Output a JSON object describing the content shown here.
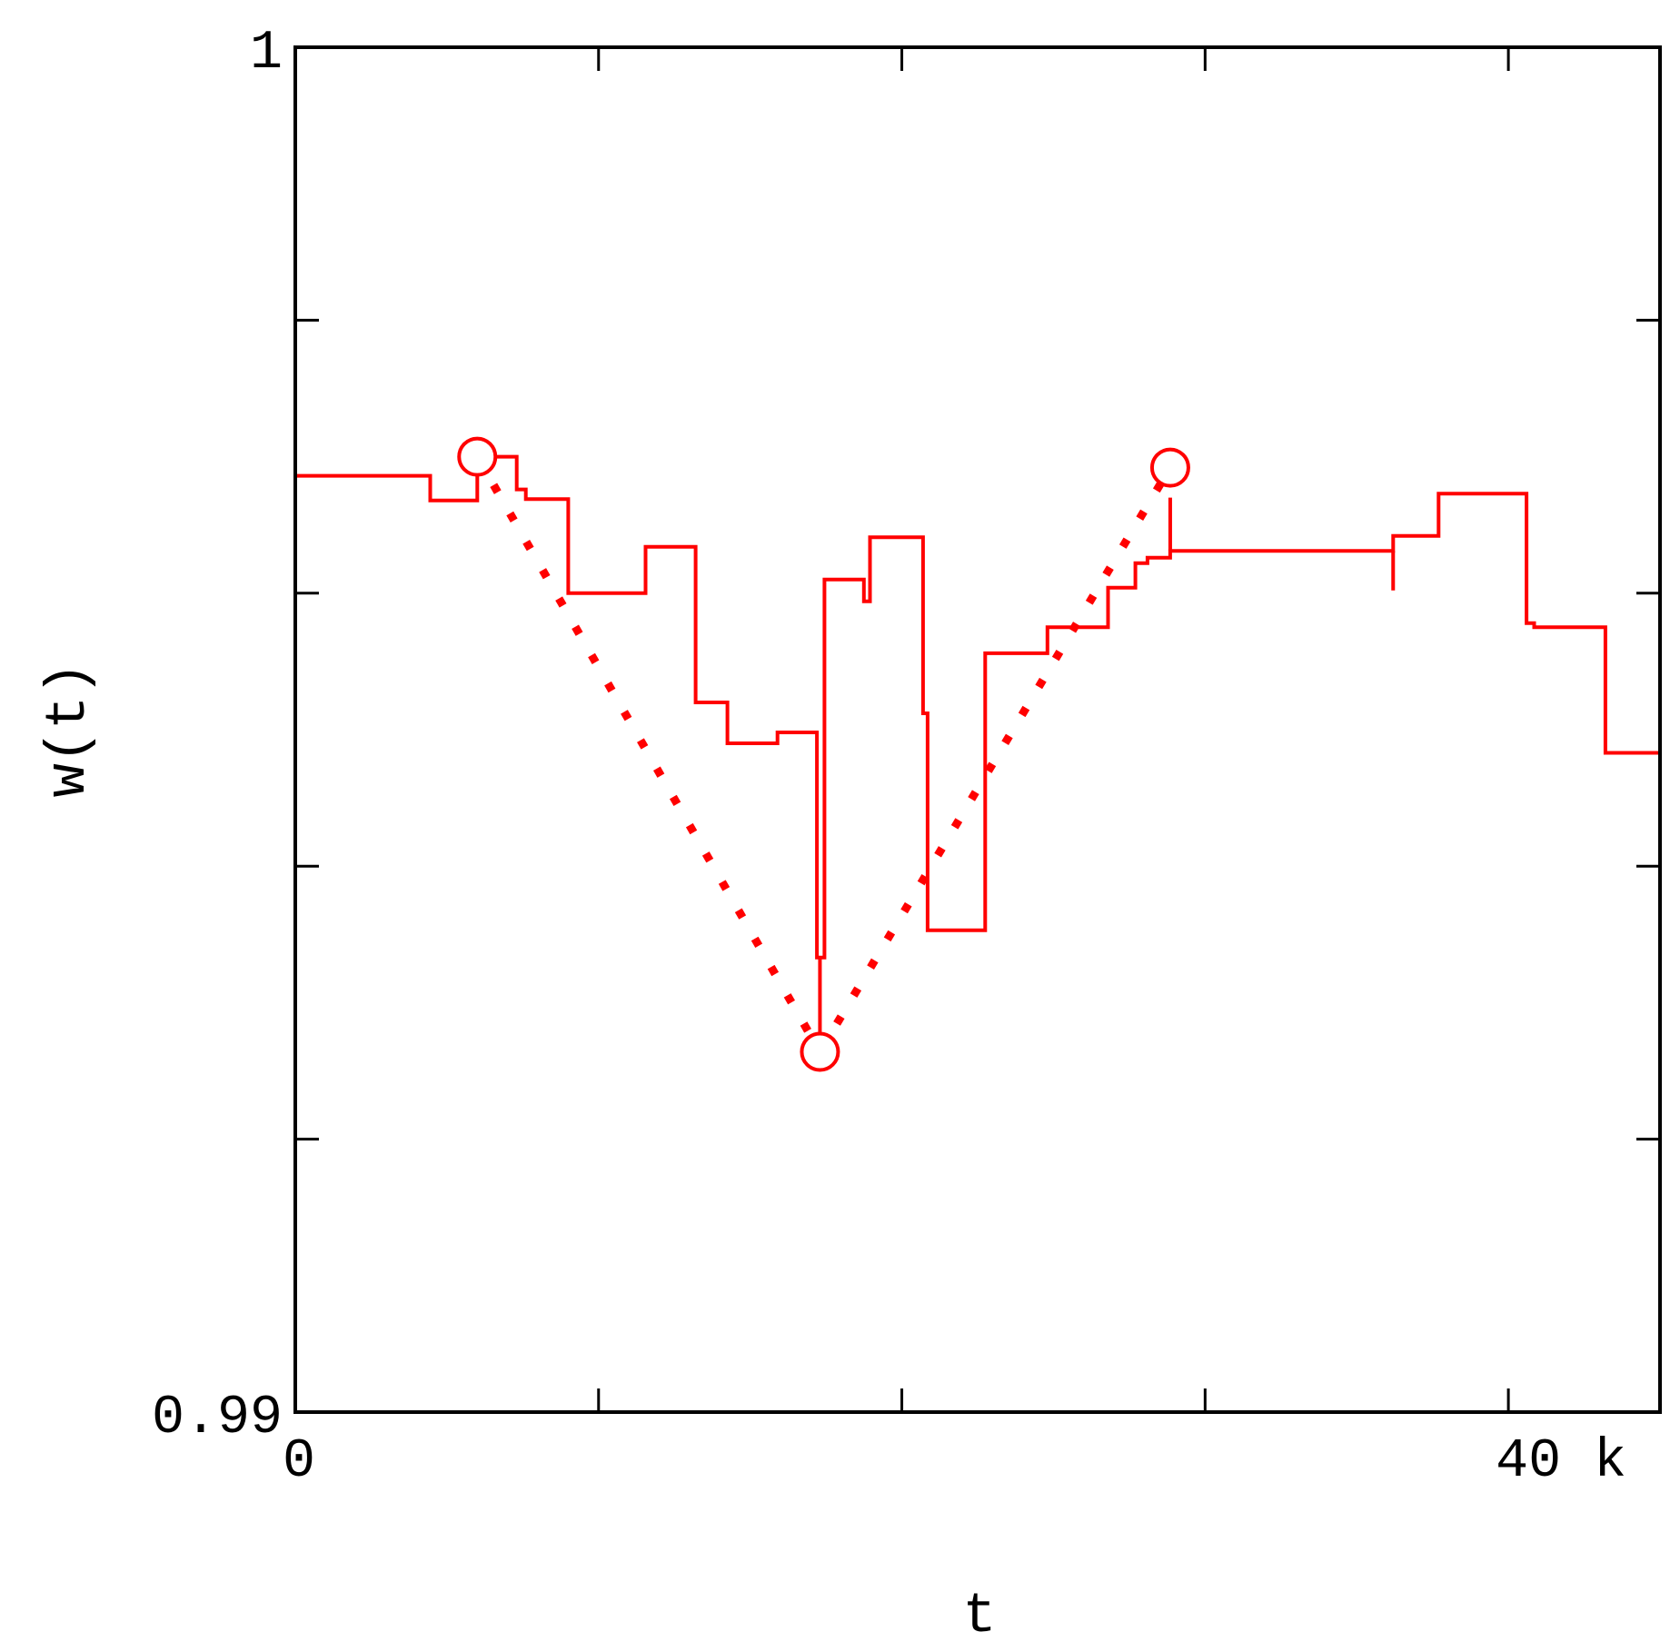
{
  "chart_data": {
    "type": "line",
    "title": "",
    "xlabel": "t",
    "ylabel": "w(t)",
    "xlim": [
      0,
      45000
    ],
    "ylim": [
      0.99,
      1.0
    ],
    "x_ticks": [
      0,
      10000,
      20000,
      30000,
      40000
    ],
    "y_ticks": [
      0.99,
      0.992,
      0.994,
      0.996,
      0.998,
      1.0
    ],
    "x_tick_labels": [
      {
        "value": 0,
        "label": "0"
      },
      {
        "value": 40000,
        "label": "40 k"
      }
    ],
    "y_tick_labels": [
      {
        "value": 0.99,
        "label": "0.99"
      },
      {
        "value": 1.0,
        "label": "1"
      }
    ],
    "grid": false,
    "colors": {
      "series": "#ff0000",
      "axes": "#000000"
    },
    "series": [
      {
        "style": "step",
        "points": [
          [
            0,
            0.99686
          ],
          [
            4450,
            0.99686
          ],
          [
            4450,
            0.99668
          ],
          [
            6000,
            0.99668
          ],
          [
            6000,
            0.997
          ],
          [
            7300,
            0.997
          ],
          [
            7300,
            0.99676
          ],
          [
            7600,
            0.99676
          ],
          [
            7600,
            0.99669
          ],
          [
            9000,
            0.99669
          ],
          [
            9000,
            0.996
          ],
          [
            11550,
            0.996
          ],
          [
            11550,
            0.99634
          ],
          [
            13200,
            0.99634
          ],
          [
            13200,
            0.9952
          ],
          [
            14250,
            0.9952
          ],
          [
            14250,
            0.9949
          ],
          [
            15900,
            0.9949
          ],
          [
            15900,
            0.99498
          ],
          [
            17200,
            0.99498
          ],
          [
            17200,
            0.99333
          ],
          [
            17450,
            0.99333
          ],
          [
            17450,
            0.9961
          ],
          [
            18750,
            0.9961
          ],
          [
            18750,
            0.99594
          ],
          [
            18950,
            0.99594
          ],
          [
            18950,
            0.99641
          ],
          [
            20700,
            0.99641
          ],
          [
            20700,
            0.99512
          ],
          [
            20850,
            0.99512
          ],
          [
            20850,
            0.99353
          ],
          [
            22750,
            0.99353
          ],
          [
            22750,
            0.99556
          ],
          [
            24800,
            0.99556
          ],
          [
            24800,
            0.99575
          ],
          [
            26800,
            0.99575
          ],
          [
            26800,
            0.99604
          ],
          [
            27700,
            0.99604
          ],
          [
            27700,
            0.99622
          ],
          [
            28100,
            0.99622
          ],
          [
            28100,
            0.99626
          ],
          [
            28850,
            0.99626
          ],
          [
            28850,
            0.99631
          ],
          [
            36200,
            0.99631
          ],
          [
            36200,
            0.99642
          ],
          [
            37700,
            0.99642
          ],
          [
            37700,
            0.99673
          ],
          [
            40600,
            0.99673
          ],
          [
            40600,
            0.99578
          ],
          [
            40850,
            0.99578
          ],
          [
            40850,
            0.99575
          ],
          [
            43200,
            0.99575
          ],
          [
            43200,
            0.99483
          ],
          [
            45000,
            0.99483
          ]
        ]
      },
      {
        "style": "segments",
        "segments": [
          [
            [
              6000,
              0.99686
            ],
            [
              6000,
              0.997
            ]
          ],
          [
            [
              36200,
              0.99631
            ],
            [
              36200,
              0.99602
            ]
          ],
          [
            [
              28850,
              0.99631
            ],
            [
              28850,
              0.9967
            ]
          ],
          [
            [
              17300,
              0.99333
            ],
            [
              17300,
              0.99264
            ]
          ]
        ]
      },
      {
        "style": "dotted",
        "points": [
          [
            6000,
            0.997
          ],
          [
            17300,
            0.99264
          ],
          [
            28850,
            0.99692
          ]
        ]
      },
      {
        "style": "markers",
        "marker": "open-circle",
        "points": [
          [
            6000,
            0.997
          ],
          [
            17300,
            0.99264
          ],
          [
            28850,
            0.99692
          ]
        ]
      }
    ]
  }
}
